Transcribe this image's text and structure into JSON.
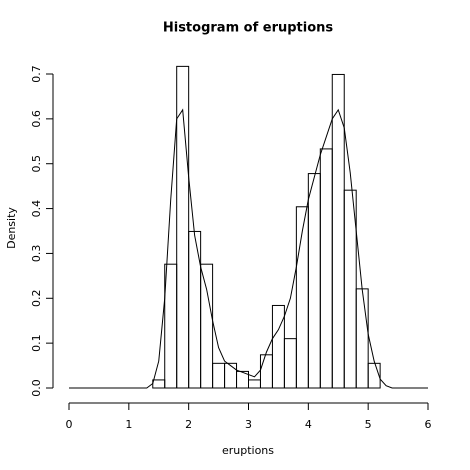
{
  "chart_data": {
    "type": "histogram",
    "title": "Histogram of eruptions",
    "xlabel": "eruptions",
    "ylabel": "Density",
    "bins": [
      1.4,
      1.6,
      1.8,
      2.0,
      2.2,
      2.4,
      2.6,
      2.8,
      3.0,
      3.2,
      3.4,
      3.6,
      3.8,
      4.0,
      4.2,
      4.4,
      4.6,
      4.8,
      5.0,
      5.2
    ],
    "values": [
      0.018,
      0.276,
      0.717,
      0.349,
      0.276,
      0.055,
      0.055,
      0.037,
      0.018,
      0.074,
      0.184,
      0.11,
      0.404,
      0.478,
      0.533,
      0.699,
      0.441,
      0.221,
      0.055
    ],
    "density": {
      "x": [
        0,
        0.1,
        0.2,
        0.3,
        0.4,
        0.5,
        0.6,
        0.7,
        0.8,
        0.9,
        1.0,
        1.1,
        1.2,
        1.3,
        1.4,
        1.5,
        1.6,
        1.7,
        1.8,
        1.9,
        2.0,
        2.1,
        2.2,
        2.3,
        2.4,
        2.5,
        2.6,
        2.7,
        2.8,
        2.9,
        3.0,
        3.1,
        3.2,
        3.3,
        3.4,
        3.5,
        3.6,
        3.7,
        3.8,
        3.9,
        4.0,
        4.1,
        4.2,
        4.3,
        4.4,
        4.5,
        4.6,
        4.7,
        4.8,
        4.9,
        5.0,
        5.1,
        5.2,
        5.3,
        5.4,
        5.5,
        5.6,
        5.7,
        5.8,
        5.9,
        6.0
      ],
      "y": [
        0,
        0,
        0,
        0,
        0,
        0,
        0,
        0,
        0,
        0,
        0,
        0,
        0,
        0,
        0.01,
        0.06,
        0.2,
        0.42,
        0.6,
        0.62,
        0.47,
        0.34,
        0.27,
        0.22,
        0.15,
        0.09,
        0.06,
        0.05,
        0.04,
        0.035,
        0.03,
        0.025,
        0.04,
        0.08,
        0.11,
        0.13,
        0.16,
        0.2,
        0.27,
        0.35,
        0.42,
        0.47,
        0.52,
        0.56,
        0.6,
        0.62,
        0.58,
        0.48,
        0.35,
        0.22,
        0.12,
        0.06,
        0.02,
        0.005,
        0,
        0,
        0,
        0,
        0,
        0,
        0
      ]
    },
    "color": "#000000",
    "xlim": [
      0,
      6
    ],
    "ylim": [
      0,
      0.7
    ],
    "xticks": [
      0,
      1,
      2,
      3,
      4,
      5,
      6
    ],
    "yticks": [
      {
        "value": 0,
        "label": "0.0"
      },
      {
        "value": 0.1,
        "label": "0.1"
      },
      {
        "value": 0.2,
        "label": "0.2"
      },
      {
        "value": 0.3,
        "label": "0.3"
      },
      {
        "value": 0.4,
        "label": "0.4"
      },
      {
        "value": 0.5,
        "label": "0.5"
      },
      {
        "value": 0.6,
        "label": "0.6"
      },
      {
        "value": 0.7,
        "label": "0.7"
      }
    ]
  }
}
